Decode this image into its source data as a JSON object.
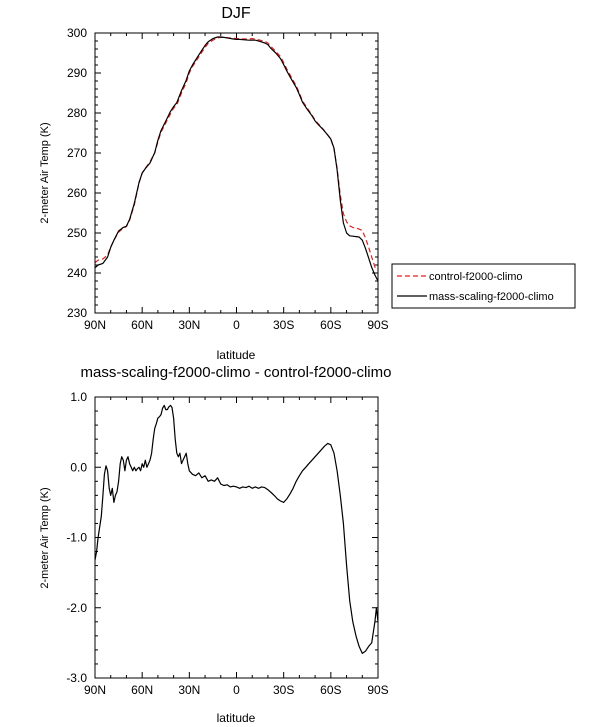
{
  "colors": {
    "control": "#e02020",
    "mass_scaling": "#000000",
    "axes": "#000000",
    "background": "#ffffff"
  },
  "chart_data": [
    {
      "type": "line",
      "title": "DJF",
      "xlabel": "latitude",
      "ylabel": "2-meter Air Temp (K)",
      "xlim": [
        90,
        -90
      ],
      "ylim": [
        230,
        300
      ],
      "xticks": [
        90,
        60,
        30,
        0,
        -30,
        -60,
        -90
      ],
      "xtick_labels": [
        "90N",
        "60N",
        "30N",
        "0",
        "30S",
        "60S",
        "90S"
      ],
      "yticks": [
        230,
        240,
        250,
        260,
        270,
        280,
        290,
        300
      ],
      "ytick_labels": [
        "230",
        "240",
        "250",
        "260",
        "270",
        "280",
        "290",
        "300"
      ],
      "grid": false,
      "legend_position": "outside-right",
      "series": [
        {
          "name": "control-f2000-climo",
          "style": "dashed",
          "color": "#e02020",
          "x": [
            90,
            88,
            85,
            82,
            80,
            78,
            75,
            72,
            70,
            68,
            65,
            62,
            60,
            58,
            55,
            52,
            50,
            48,
            45,
            42,
            40,
            38,
            35,
            32,
            30,
            28,
            25,
            22,
            20,
            18,
            15,
            12,
            10,
            8,
            5,
            2,
            0,
            -2,
            -5,
            -8,
            -10,
            -12,
            -15,
            -18,
            -20,
            -22,
            -25,
            -28,
            -30,
            -32,
            -35,
            -38,
            -40,
            -42,
            -45,
            -48,
            -50,
            -52,
            -55,
            -58,
            -60,
            -62,
            -64,
            -66,
            -68,
            -70,
            -72,
            -74,
            -76,
            -78,
            -80,
            -82,
            -84,
            -86,
            -88,
            -90
          ],
          "y": [
            242.6,
            243.2,
            243.5,
            244.5,
            246.5,
            248.2,
            250.2,
            251.2,
            251.6,
            253.2,
            257.0,
            262.5,
            265.0,
            266.2,
            267.8,
            270.0,
            272.8,
            275.2,
            277.5,
            279.8,
            281.2,
            282.0,
            285.0,
            287.6,
            290.0,
            291.6,
            293.4,
            295.2,
            296.4,
            297.4,
            298.2,
            298.8,
            298.9,
            298.9,
            298.8,
            298.7,
            298.6,
            298.6,
            298.5,
            298.5,
            298.6,
            298.5,
            298.2,
            297.9,
            297.5,
            296.6,
            295.4,
            294.1,
            292.6,
            291.0,
            288.9,
            286.8,
            285.0,
            283.0,
            281.2,
            279.5,
            278.2,
            277.3,
            276.0,
            274.5,
            273.5,
            271.0,
            266.2,
            259.5,
            254.8,
            252.8,
            251.8,
            251.4,
            251.2,
            251.0,
            250.6,
            248.8,
            246.5,
            244.0,
            241.5,
            240.8
          ]
        },
        {
          "name": "mass-scaling-f2000-climo",
          "style": "solid",
          "color": "#000000",
          "x": [
            90,
            88,
            85,
            82,
            80,
            78,
            75,
            72,
            70,
            68,
            65,
            62,
            60,
            58,
            55,
            52,
            50,
            48,
            45,
            42,
            40,
            38,
            35,
            32,
            30,
            28,
            25,
            22,
            20,
            18,
            15,
            12,
            10,
            8,
            5,
            2,
            0,
            -2,
            -5,
            -8,
            -10,
            -12,
            -15,
            -18,
            -20,
            -22,
            -25,
            -28,
            -30,
            -32,
            -35,
            -38,
            -40,
            -42,
            -45,
            -48,
            -50,
            -52,
            -55,
            -58,
            -60,
            -62,
            -64,
            -66,
            -68,
            -70,
            -72,
            -74,
            -76,
            -78,
            -80,
            -82,
            -84,
            -86,
            -88,
            -90
          ],
          "y": [
            241.3,
            242.0,
            242.4,
            244.0,
            246.4,
            248.2,
            250.5,
            251.4,
            251.7,
            253.4,
            257.4,
            262.6,
            265.0,
            266.1,
            267.5,
            270.1,
            273.2,
            275.6,
            278.0,
            280.4,
            281.6,
            282.6,
            285.6,
            288.2,
            290.5,
            292.0,
            293.9,
            295.7,
            296.9,
            297.8,
            298.6,
            299.0,
            299.0,
            298.9,
            298.7,
            298.5,
            298.4,
            298.4,
            298.3,
            298.2,
            298.2,
            298.2,
            297.9,
            297.5,
            297.1,
            296.1,
            295.0,
            293.6,
            292.1,
            290.5,
            288.4,
            286.4,
            284.6,
            282.7,
            280.9,
            279.3,
            278.0,
            277.1,
            275.9,
            274.5,
            273.5,
            271.2,
            265.8,
            258.2,
            252.5,
            250.0,
            249.3,
            249.2,
            249.1,
            249.0,
            248.2,
            246.2,
            243.8,
            241.4,
            239.5,
            238.0
          ]
        }
      ]
    },
    {
      "type": "line",
      "title": "mass-scaling-f2000-climo - control-f2000-climo",
      "xlabel": "latitude",
      "ylabel": "2-meter Air Temp (K)",
      "xlim": [
        90,
        -90
      ],
      "ylim": [
        -3.0,
        1.0
      ],
      "xticks": [
        90,
        60,
        30,
        0,
        -30,
        -60,
        -90
      ],
      "xtick_labels": [
        "90N",
        "60N",
        "30N",
        "0",
        "30S",
        "60S",
        "90S"
      ],
      "yticks": [
        -3.0,
        -2.0,
        -1.0,
        0.0,
        1.0
      ],
      "ytick_labels": [
        "-3.0",
        "-2.0",
        "-1.0",
        "0.0",
        "1.0"
      ],
      "grid": false,
      "series": [
        {
          "color": "#000000",
          "style": "solid",
          "x": [
            90,
            89,
            88,
            86,
            85,
            84,
            83,
            82,
            81,
            80,
            79,
            78,
            77,
            76,
            75,
            74,
            73,
            72,
            71,
            70,
            69,
            68,
            67,
            66,
            65,
            64,
            63,
            62,
            61,
            60,
            59,
            58,
            57,
            56,
            55,
            54,
            53,
            52,
            51,
            50,
            49,
            48,
            47,
            46,
            45,
            44,
            43,
            42,
            41,
            40,
            39,
            38,
            37,
            36,
            35,
            34,
            33,
            32,
            31,
            30,
            28,
            26,
            24,
            22,
            20,
            18,
            16,
            14,
            12,
            10,
            8,
            6,
            4,
            2,
            0,
            -2,
            -4,
            -6,
            -8,
            -10,
            -12,
            -14,
            -16,
            -18,
            -20,
            -22,
            -24,
            -26,
            -28,
            -30,
            -32,
            -34,
            -36,
            -38,
            -40,
            -42,
            -44,
            -46,
            -48,
            -50,
            -52,
            -54,
            -56,
            -58,
            -60,
            -62,
            -64,
            -66,
            -68,
            -70,
            -72,
            -74,
            -76,
            -78,
            -80,
            -82,
            -84,
            -86,
            -88,
            -89,
            -90
          ],
          "y": [
            -1.32,
            -1.2,
            -1.0,
            -0.7,
            -0.4,
            -0.1,
            0.02,
            -0.05,
            -0.3,
            -0.4,
            -0.3,
            -0.5,
            -0.4,
            -0.35,
            -0.2,
            0.05,
            0.15,
            0.1,
            -0.05,
            0.1,
            0.15,
            0.05,
            0.0,
            -0.05,
            0.0,
            -0.05,
            -0.02,
            0.0,
            -0.05,
            0.05,
            0.0,
            0.1,
            0.0,
            0.05,
            0.1,
            0.2,
            0.4,
            0.55,
            0.62,
            0.7,
            0.72,
            0.75,
            0.84,
            0.88,
            0.82,
            0.82,
            0.86,
            0.88,
            0.85,
            0.7,
            0.4,
            0.2,
            0.15,
            0.2,
            0.05,
            0.1,
            0.15,
            0.2,
            0.05,
            -0.05,
            -0.1,
            -0.12,
            -0.08,
            -0.15,
            -0.12,
            -0.2,
            -0.18,
            -0.2,
            -0.15,
            -0.24,
            -0.26,
            -0.25,
            -0.28,
            -0.27,
            -0.28,
            -0.3,
            -0.28,
            -0.29,
            -0.27,
            -0.3,
            -0.28,
            -0.3,
            -0.28,
            -0.29,
            -0.32,
            -0.36,
            -0.4,
            -0.45,
            -0.48,
            -0.5,
            -0.45,
            -0.38,
            -0.3,
            -0.2,
            -0.12,
            -0.05,
            0.0,
            0.05,
            0.1,
            0.15,
            0.2,
            0.25,
            0.3,
            0.34,
            0.32,
            0.2,
            -0.05,
            -0.4,
            -0.8,
            -1.4,
            -1.9,
            -2.2,
            -2.4,
            -2.55,
            -2.65,
            -2.62,
            -2.55,
            -2.5,
            -2.2,
            -2.0,
            -2.2
          ]
        }
      ]
    }
  ]
}
